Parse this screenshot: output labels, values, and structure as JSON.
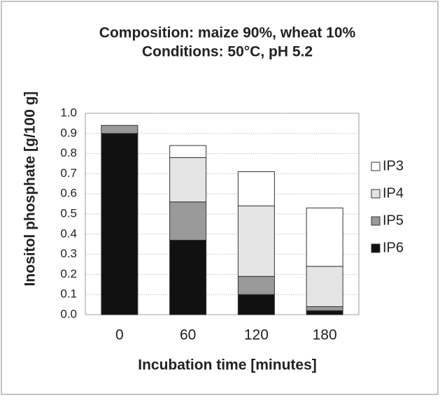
{
  "chart_data": {
    "type": "stacked_bar",
    "title": "Composition: maize 90%, wheat 10%",
    "subtitle": "Conditions: 50°C, pH 5.2",
    "x_label": "Incubation time [minutes]",
    "y_label": "Inositol phosphate [g/100 g]",
    "categories": [
      "0",
      "60",
      "120",
      "180"
    ],
    "series": [
      {
        "name": "IP6",
        "color": "#111111",
        "values": [
          0.9,
          0.37,
          0.1,
          0.02
        ]
      },
      {
        "name": "IP5",
        "color": "#9a9a9a",
        "values": [
          0.04,
          0.19,
          0.09,
          0.02
        ]
      },
      {
        "name": "IP4",
        "color": "#e4e4e4",
        "values": [
          0,
          0.22,
          0.35,
          0.2
        ]
      },
      {
        "name": "IP3",
        "color": "#ffffff",
        "values": [
          0,
          0.06,
          0.17,
          0.29
        ]
      }
    ],
    "ylim": [
      0,
      1
    ],
    "yticks": [
      {
        "value": 0,
        "label": "0.0"
      },
      0.1,
      0.2,
      0.3,
      0.4,
      0.5,
      0.6,
      0.7,
      0.8,
      0.9,
      {
        "value": 1,
        "label": "1.0"
      }
    ],
    "grid": true,
    "legend": "right"
  }
}
